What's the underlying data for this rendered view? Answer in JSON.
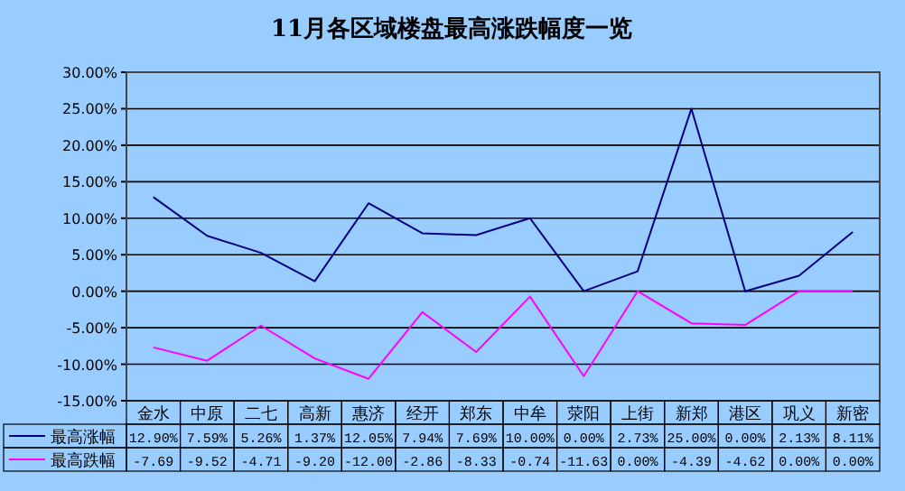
{
  "chart_data": {
    "type": "line",
    "title": "11月各区域楼盘最高涨跌幅度一览",
    "categories": [
      "金水",
      "中原",
      "二七",
      "高新",
      "惠济",
      "经开",
      "郑东",
      "中牟",
      "荥阳",
      "上街",
      "新郑",
      "港区",
      "巩义",
      "新密"
    ],
    "series": [
      {
        "name": "最高涨幅",
        "color": "#000080",
        "values": [
          12.9,
          7.59,
          5.26,
          1.37,
          12.05,
          7.94,
          7.69,
          10.0,
          0.0,
          2.73,
          25.0,
          0.0,
          2.13,
          8.11
        ],
        "value_labels": [
          "12.90%",
          "7.59%",
          "5.26%",
          "1.37%",
          "12.05%",
          "7.94%",
          "7.69%",
          "10.00%",
          "0.00%",
          "2.73%",
          "25.00%",
          "0.00%",
          "2.13%",
          "8.11%"
        ]
      },
      {
        "name": "最高跌幅",
        "color": "#ff00ff",
        "values": [
          -7.69,
          -9.52,
          -4.71,
          -9.2,
          -12.0,
          -2.86,
          -8.33,
          -0.74,
          -11.63,
          0.0,
          -4.39,
          -4.62,
          0.0,
          0.0
        ],
        "value_labels": [
          "-7.69",
          "-9.52",
          "-4.71",
          "-9.20",
          "-12.00",
          "-2.86",
          "-8.33",
          "-0.74",
          "-11.63",
          "0.00%",
          "-4.39",
          "-4.62",
          "0.00%",
          "0.00%"
        ]
      }
    ],
    "ylim": [
      -15,
      30
    ],
    "yticks": [
      {
        "value": 30,
        "label": "30.00%"
      },
      {
        "value": 25,
        "label": "25.00%"
      },
      {
        "value": 20,
        "label": "20.00%"
      },
      {
        "value": 15,
        "label": "15.00%"
      },
      {
        "value": 10,
        "label": "10.00%"
      },
      {
        "value": 5,
        "label": "5.00%"
      },
      {
        "value": 0,
        "label": "0.00%"
      },
      {
        "value": -5,
        "label": "-5.00%"
      },
      {
        "value": -10,
        "label": "-10.00%"
      },
      {
        "value": -15,
        "label": "-15.00%"
      }
    ],
    "grid": "y",
    "legend": "bottom left",
    "marker": "none",
    "line_style": "solid"
  }
}
